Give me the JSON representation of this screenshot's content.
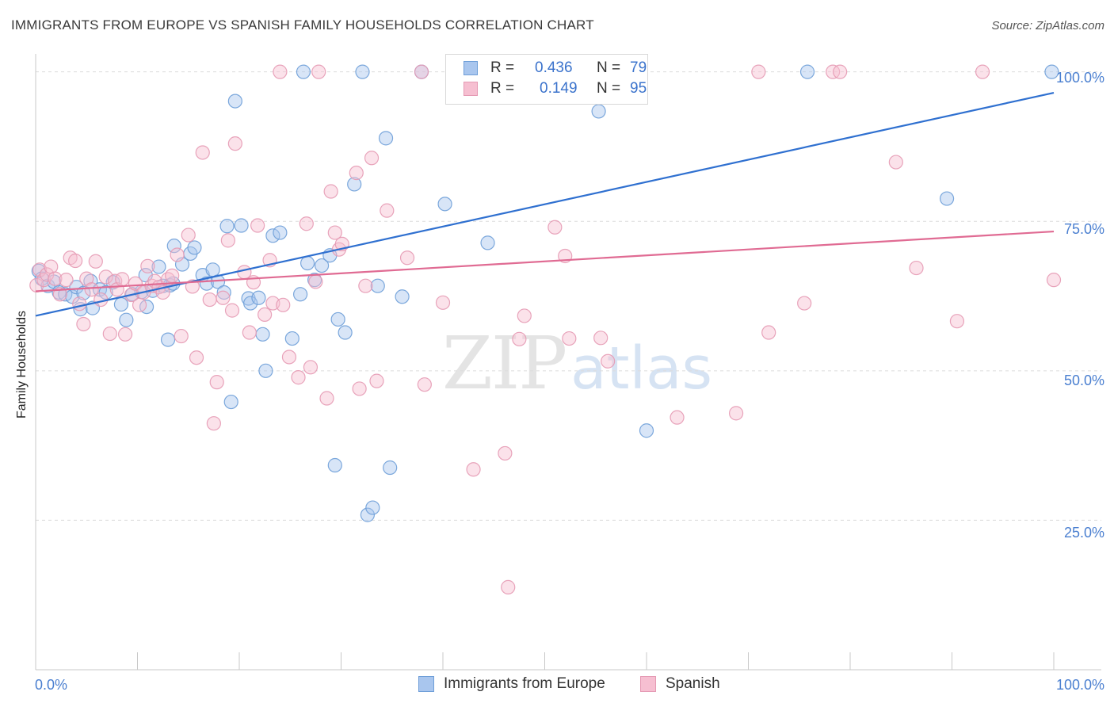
{
  "title": "IMMIGRANTS FROM EUROPE VS SPANISH FAMILY HOUSEHOLDS CORRELATION CHART",
  "source": "Source: ZipAtlas.com",
  "watermark": {
    "zip": "ZIP",
    "atlas": "atlas"
  },
  "legend": {
    "r_label": "R =",
    "n_label": "N =",
    "rows": [
      {
        "r": "0.436",
        "n": "79"
      },
      {
        "r": "0.149",
        "n": "95"
      }
    ]
  },
  "bottom_legend": {
    "europe": "Immigrants from Europe",
    "spanish": "Spanish"
  },
  "colors": {
    "europe_fill": "#a9c6ee",
    "europe_stroke": "#6e9ed8",
    "europe_line": "#2f70d0",
    "spanish_fill": "#f6bfd1",
    "spanish_stroke": "#e59ab4",
    "spanish_line": "#e06b93",
    "axis_label": "#4a7fd0",
    "grid": "#dcdcdc"
  },
  "chart_data": {
    "type": "scatter",
    "title": "IMMIGRANTS FROM EUROPE VS SPANISH FAMILY HOUSEHOLDS CORRELATION CHART",
    "xlabel": "",
    "ylabel": "Family Households",
    "x_tick_labels": [
      "0.0%",
      "100.0%"
    ],
    "y_tick_labels": [
      "100.0%",
      "75.0%",
      "50.0%",
      "25.0%"
    ],
    "y_ticks": [
      100,
      75,
      50,
      25
    ],
    "xlim": [
      0,
      100
    ],
    "ylim": [
      0,
      103
    ],
    "grid": true,
    "legend_placement": "top-center",
    "series": [
      {
        "name": "Immigrants from Europe",
        "r": 0.436,
        "n": 79,
        "trend": [
          [
            0,
            59.2
          ],
          [
            100,
            96.5
          ]
        ],
        "points": [
          [
            0.3,
            66.7
          ],
          [
            0.6,
            65.4
          ],
          [
            1.2,
            64.2
          ],
          [
            1.8,
            64.9
          ],
          [
            2.3,
            63.1
          ],
          [
            2.9,
            62.8
          ],
          [
            3.6,
            62.4
          ],
          [
            4.0,
            64.0
          ],
          [
            4.4,
            60.3
          ],
          [
            4.7,
            63.0
          ],
          [
            5.4,
            65.0
          ],
          [
            5.6,
            60.5
          ],
          [
            6.3,
            63.6
          ],
          [
            6.9,
            63.1
          ],
          [
            7.6,
            64.8
          ],
          [
            8.4,
            61.1
          ],
          [
            8.9,
            58.5
          ],
          [
            9.5,
            62.8
          ],
          [
            10.4,
            63.2
          ],
          [
            10.8,
            66.0
          ],
          [
            10.9,
            60.7
          ],
          [
            11.5,
            63.4
          ],
          [
            12.1,
            67.4
          ],
          [
            12.5,
            64.2
          ],
          [
            13.0,
            55.2
          ],
          [
            13.2,
            64.3
          ],
          [
            13.5,
            64.6
          ],
          [
            13.6,
            70.9
          ],
          [
            14.4,
            67.8
          ],
          [
            15.2,
            69.6
          ],
          [
            15.6,
            70.6
          ],
          [
            16.4,
            66.0
          ],
          [
            16.8,
            64.6
          ],
          [
            17.4,
            66.9
          ],
          [
            17.9,
            64.9
          ],
          [
            18.5,
            63.1
          ],
          [
            18.8,
            74.2
          ],
          [
            19.2,
            44.8
          ],
          [
            19.6,
            95.1
          ],
          [
            20.2,
            74.3
          ],
          [
            20.9,
            62.1
          ],
          [
            21.1,
            61.3
          ],
          [
            21.9,
            62.2
          ],
          [
            22.3,
            56.1
          ],
          [
            22.6,
            50.0
          ],
          [
            23.3,
            72.6
          ],
          [
            24.0,
            73.1
          ],
          [
            25.2,
            55.4
          ],
          [
            26.0,
            62.8
          ],
          [
            26.3,
            100.0
          ],
          [
            26.7,
            68.0
          ],
          [
            27.4,
            65.2
          ],
          [
            28.1,
            67.6
          ],
          [
            28.9,
            69.3
          ],
          [
            29.4,
            34.2
          ],
          [
            29.7,
            58.6
          ],
          [
            30.4,
            56.4
          ],
          [
            31.3,
            81.2
          ],
          [
            32.1,
            100.0
          ],
          [
            32.6,
            25.9
          ],
          [
            33.1,
            27.1
          ],
          [
            33.6,
            64.2
          ],
          [
            34.4,
            88.9
          ],
          [
            34.8,
            33.8
          ],
          [
            36.0,
            62.4
          ],
          [
            37.9,
            100.0
          ],
          [
            40.2,
            77.9
          ],
          [
            44.4,
            71.4
          ],
          [
            47.0,
            100.0
          ],
          [
            49.0,
            100.0
          ],
          [
            53.5,
            100.0
          ],
          [
            55.3,
            93.4
          ],
          [
            60.0,
            40.0
          ],
          [
            75.8,
            100.0
          ],
          [
            89.5,
            78.8
          ],
          [
            99.8,
            100.0
          ]
        ]
      },
      {
        "name": "Spanish",
        "r": 0.149,
        "n": 95,
        "trend": [
          [
            0,
            63.3
          ],
          [
            100,
            73.3
          ]
        ],
        "points": [
          [
            0.1,
            64.3
          ],
          [
            0.4,
            66.9
          ],
          [
            0.8,
            65.2
          ],
          [
            1.1,
            66.1
          ],
          [
            1.5,
            67.4
          ],
          [
            1.9,
            65.4
          ],
          [
            2.4,
            62.8
          ],
          [
            3.0,
            65.2
          ],
          [
            3.4,
            68.9
          ],
          [
            3.9,
            68.4
          ],
          [
            4.3,
            61.2
          ],
          [
            4.7,
            57.8
          ],
          [
            5.0,
            65.4
          ],
          [
            5.5,
            63.6
          ],
          [
            5.9,
            68.3
          ],
          [
            6.4,
            61.9
          ],
          [
            6.9,
            65.7
          ],
          [
            7.3,
            56.2
          ],
          [
            7.8,
            65.0
          ],
          [
            8.0,
            63.6
          ],
          [
            8.5,
            65.3
          ],
          [
            8.8,
            56.1
          ],
          [
            9.4,
            62.7
          ],
          [
            9.8,
            64.6
          ],
          [
            10.2,
            61.0
          ],
          [
            10.6,
            63.1
          ],
          [
            11.0,
            67.5
          ],
          [
            11.4,
            64.2
          ],
          [
            11.7,
            65.0
          ],
          [
            12.1,
            64.0
          ],
          [
            12.5,
            63.1
          ],
          [
            13.0,
            65.3
          ],
          [
            13.4,
            65.9
          ],
          [
            13.9,
            69.4
          ],
          [
            14.3,
            55.8
          ],
          [
            15.0,
            72.7
          ],
          [
            15.4,
            64.1
          ],
          [
            15.8,
            52.2
          ],
          [
            16.4,
            86.5
          ],
          [
            17.1,
            61.9
          ],
          [
            17.5,
            41.2
          ],
          [
            17.8,
            48.1
          ],
          [
            18.4,
            62.2
          ],
          [
            18.9,
            71.8
          ],
          [
            19.3,
            60.1
          ],
          [
            19.6,
            88.0
          ],
          [
            20.5,
            66.5
          ],
          [
            21.0,
            56.4
          ],
          [
            21.4,
            64.8
          ],
          [
            21.8,
            74.3
          ],
          [
            22.5,
            59.4
          ],
          [
            23.0,
            68.5
          ],
          [
            23.3,
            61.3
          ],
          [
            24.0,
            100.0
          ],
          [
            24.3,
            61.0
          ],
          [
            24.9,
            52.3
          ],
          [
            25.8,
            48.9
          ],
          [
            26.6,
            74.6
          ],
          [
            27.0,
            50.6
          ],
          [
            27.5,
            64.9
          ],
          [
            27.8,
            100.0
          ],
          [
            28.6,
            45.4
          ],
          [
            29.0,
            80.0
          ],
          [
            29.4,
            73.1
          ],
          [
            29.8,
            70.3
          ],
          [
            30.1,
            71.2
          ],
          [
            31.5,
            83.1
          ],
          [
            31.8,
            47.0
          ],
          [
            32.4,
            64.2
          ],
          [
            33.0,
            85.6
          ],
          [
            33.5,
            48.3
          ],
          [
            34.5,
            76.8
          ],
          [
            36.5,
            68.9
          ],
          [
            37.9,
            100.0
          ],
          [
            38.2,
            47.7
          ],
          [
            40.0,
            61.4
          ],
          [
            41.5,
            98.7
          ],
          [
            43.0,
            33.5
          ],
          [
            46.1,
            36.2
          ],
          [
            46.4,
            13.8
          ],
          [
            47.5,
            55.3
          ],
          [
            48.0,
            59.2
          ],
          [
            51.0,
            74.0
          ],
          [
            52.0,
            69.2
          ],
          [
            52.4,
            55.4
          ],
          [
            55.5,
            55.5
          ],
          [
            56.2,
            51.6
          ],
          [
            63.0,
            42.2
          ],
          [
            68.8,
            42.9
          ],
          [
            71.0,
            100.0
          ],
          [
            72.0,
            56.4
          ],
          [
            75.5,
            61.3
          ],
          [
            78.3,
            100.0
          ],
          [
            79.0,
            100.0
          ],
          [
            84.5,
            84.9
          ],
          [
            86.5,
            67.2
          ],
          [
            90.5,
            58.3
          ],
          [
            93.0,
            100.0
          ],
          [
            100.0,
            65.2
          ]
        ]
      }
    ]
  }
}
